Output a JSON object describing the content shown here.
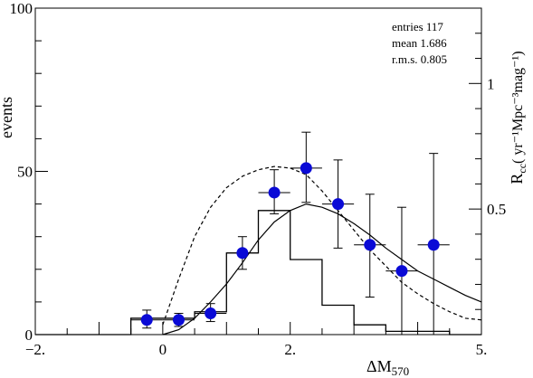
{
  "chart_data": {
    "type": "scatter",
    "x_axis": {
      "label": "ΔM",
      "label_sub": "570",
      "range": [
        -2.0,
        5.0
      ],
      "tick_values": [
        -2,
        0,
        2,
        5
      ],
      "tick_labels": [
        "−2.",
        "0",
        "2.",
        "5."
      ]
    },
    "y_axis_left": {
      "label": "events",
      "range": [
        0,
        100
      ],
      "tick_values": [
        0,
        50,
        100
      ],
      "tick_labels": [
        "0",
        "50",
        "100"
      ]
    },
    "y_axis_right": {
      "label_main": "R",
      "label_sub": "cc",
      "label_rest": "( yr⁻¹Mpc⁻³mag⁻¹",
      "label_end": ")",
      "range": [
        0.0,
        1.3
      ],
      "tick_values": [
        0.5,
        1.0
      ],
      "tick_labels": [
        "0.5",
        "1"
      ]
    },
    "stats": [
      {
        "label": "entries",
        "value": "117"
      },
      {
        "label": "mean",
        "value": "1.686"
      },
      {
        "label": "r.m.s.",
        "value": "0.805"
      }
    ],
    "points": [
      {
        "x": -0.25,
        "y": 4.5,
        "xerr": 0.25,
        "ylo": 2.0,
        "yhi": 7.5
      },
      {
        "x": 0.25,
        "y": 4.5,
        "xerr": 0.25,
        "ylo": 2.5,
        "yhi": 6.5
      },
      {
        "x": 0.75,
        "y": 6.5,
        "xerr": 0.25,
        "ylo": 4.0,
        "yhi": 9.5
      },
      {
        "x": 1.25,
        "y": 25.0,
        "xerr": 0.25,
        "ylo": 20.0,
        "yhi": 30.0
      },
      {
        "x": 1.75,
        "y": 43.5,
        "xerr": 0.25,
        "ylo": 37.0,
        "yhi": 50.5
      },
      {
        "x": 2.25,
        "y": 51.0,
        "xerr": 0.25,
        "ylo": 40.5,
        "yhi": 62.0
      },
      {
        "x": 2.75,
        "y": 40.0,
        "xerr": 0.25,
        "ylo": 26.5,
        "yhi": 53.5
      },
      {
        "x": 3.25,
        "y": 27.5,
        "xerr": 0.25,
        "ylo": 11.5,
        "yhi": 43.0
      },
      {
        "x": 3.75,
        "y": 19.5,
        "xerr": 0.25,
        "ylo": 0.0,
        "yhi": 39.0
      },
      {
        "x": 4.25,
        "y": 27.5,
        "xerr": 0.25,
        "ylo": 0.0,
        "yhi": 55.5
      }
    ],
    "histogram": {
      "edges": [
        -0.5,
        0.0,
        0.5,
        1.0,
        1.5,
        2.0,
        2.5,
        3.0,
        3.5,
        4.0,
        4.5
      ],
      "counts": [
        5.0,
        5.0,
        7.0,
        25.0,
        38.0,
        23.0,
        9.0,
        3.0,
        1.0,
        1.0
      ]
    },
    "solid_curve": {
      "x": [
        0.0,
        0.25,
        0.5,
        0.75,
        1.0,
        1.25,
        1.5,
        1.75,
        2.0,
        2.25,
        2.5,
        2.75,
        3.0,
        3.25,
        3.5,
        3.75,
        4.0,
        4.25,
        4.5,
        4.75,
        5.0
      ],
      "y": [
        0.0,
        1.5,
        5.0,
        10.0,
        15.5,
        22.0,
        29.0,
        34.5,
        38.0,
        40.0,
        39.0,
        37.0,
        34.0,
        30.5,
        26.5,
        23.0,
        19.5,
        17.0,
        14.5,
        12.0,
        10.0
      ]
    },
    "dashed_curve": {
      "x": [
        0.0,
        0.25,
        0.5,
        0.75,
        1.0,
        1.25,
        1.5,
        1.75,
        2.0,
        2.25,
        2.5,
        2.75,
        3.0,
        3.25,
        3.5,
        3.75,
        4.0,
        4.25,
        4.5,
        4.75,
        5.0
      ],
      "y": [
        3.0,
        17.0,
        30.0,
        39.0,
        45.0,
        48.5,
        50.5,
        51.5,
        51.0,
        49.0,
        44.0,
        38.0,
        32.0,
        26.0,
        21.0,
        16.0,
        12.5,
        9.5,
        7.0,
        5.0,
        4.5
      ]
    },
    "colors": {
      "marker": "#0a0ad6",
      "line": "#000000",
      "background": "#ffffff"
    }
  }
}
